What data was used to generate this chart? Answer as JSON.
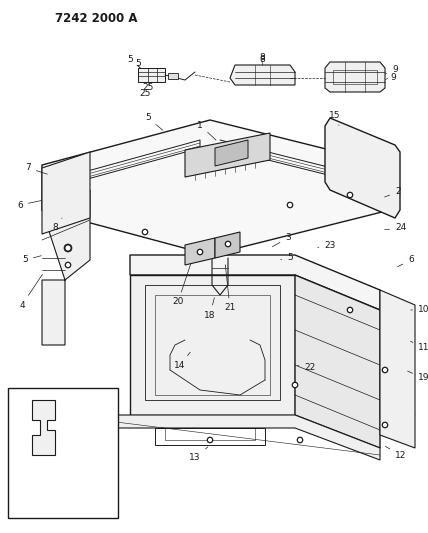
{
  "title": "7242 2000 A",
  "bg_color": "#ffffff",
  "line_color": "#1a1a1a",
  "figsize": [
    4.28,
    5.33
  ],
  "dpi": 100,
  "label_fs": 6.5,
  "title_fs": 8.5
}
